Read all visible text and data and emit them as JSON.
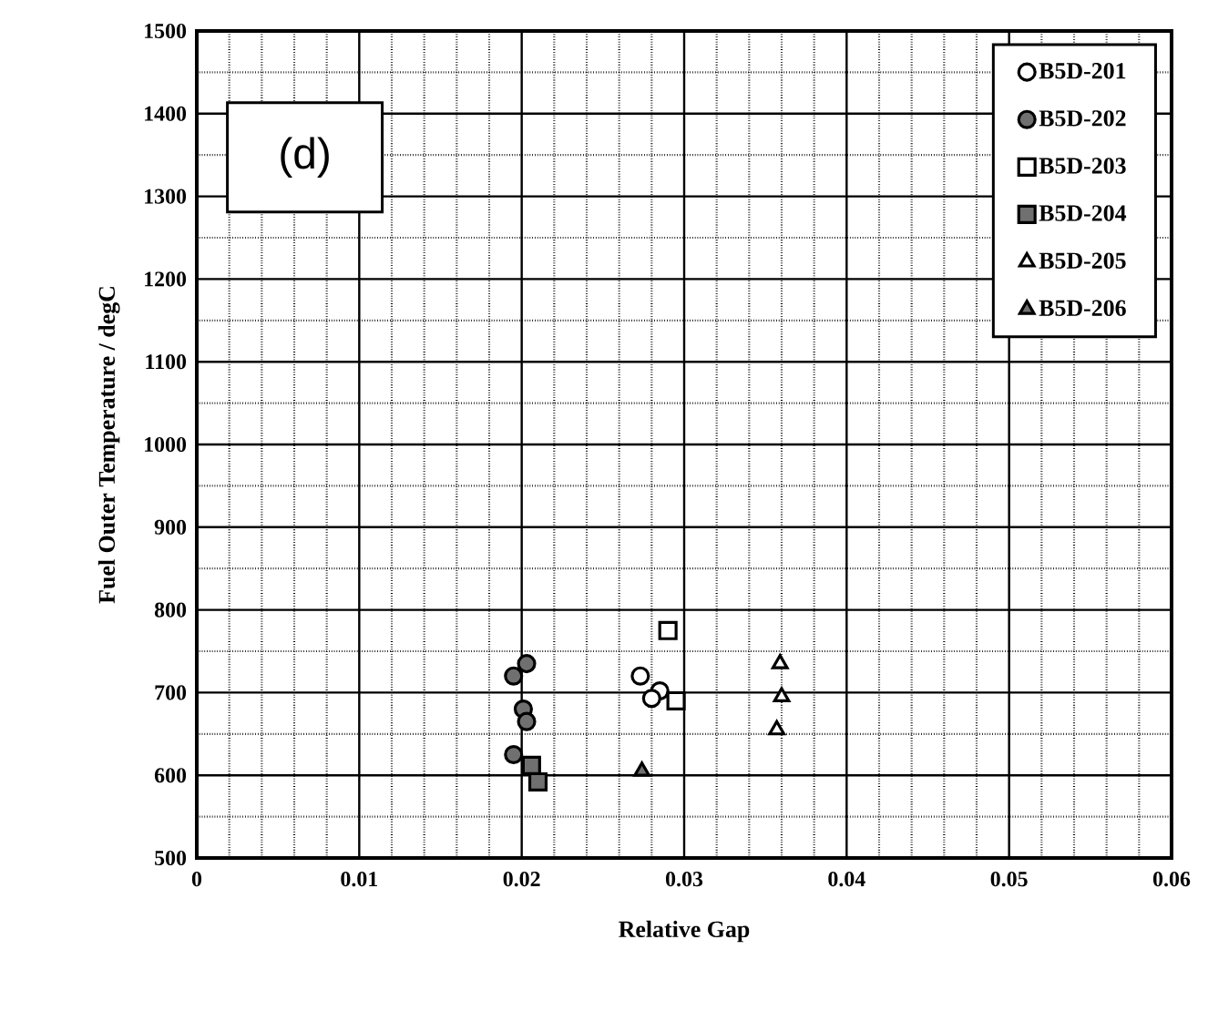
{
  "chart_data": {
    "type": "scatter",
    "xlabel": "Relative Gap",
    "ylabel": "Fuel Outer Temperature / degC",
    "annotations": [
      "(d)"
    ],
    "xlim": [
      0,
      0.06
    ],
    "xticks": [
      0,
      0.01,
      0.02,
      0.03,
      0.04,
      0.05,
      0.06
    ],
    "ylim": [
      500,
      1500
    ],
    "yticks": [
      500,
      600,
      700,
      800,
      900,
      1000,
      1100,
      1200,
      1300,
      1400,
      1500
    ],
    "grid": true,
    "legend": "top right",
    "series": [
      {
        "name": "B5D-201",
        "color": "#ffffff",
        "marker": "circle",
        "x": [
          0.0273,
          0.0285,
          0.028
        ],
        "values": [
          720,
          702,
          693
        ]
      },
      {
        "name": "B5D-202",
        "color": "#707070",
        "marker": "circle",
        "x": [
          0.0195,
          0.0203,
          0.0201,
          0.0203,
          0.0195
        ],
        "values": [
          720,
          735,
          680,
          665,
          625
        ]
      },
      {
        "name": "B5D-203",
        "color": "#ffffff",
        "marker": "square",
        "x": [
          0.029,
          0.0295
        ],
        "values": [
          775,
          690
        ]
      },
      {
        "name": "B5D-204",
        "color": "#707070",
        "marker": "square",
        "x": [
          0.0206,
          0.021
        ],
        "values": [
          612,
          592
        ]
      },
      {
        "name": "B5D-205",
        "color": "#ffffff",
        "marker": "triangle",
        "x": [
          0.0359,
          0.036,
          0.0357
        ],
        "values": [
          735,
          695,
          655
        ]
      },
      {
        "name": "B5D-206",
        "color": "#707070",
        "marker": "triangle",
        "x": [
          0.0274
        ],
        "values": [
          605
        ]
      }
    ]
  }
}
